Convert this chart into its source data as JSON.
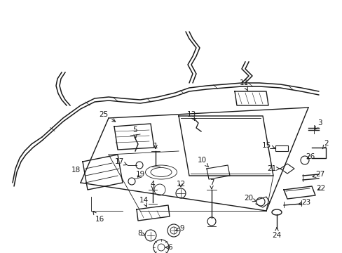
{
  "bg_color": "#ffffff",
  "line_color": "#1a1a1a",
  "fig_width": 4.89,
  "fig_height": 3.6,
  "dpi": 100,
  "font_size": 7.5,
  "lw_main": 1.0,
  "lw_thin": 0.6,
  "lw_wire": 1.1
}
